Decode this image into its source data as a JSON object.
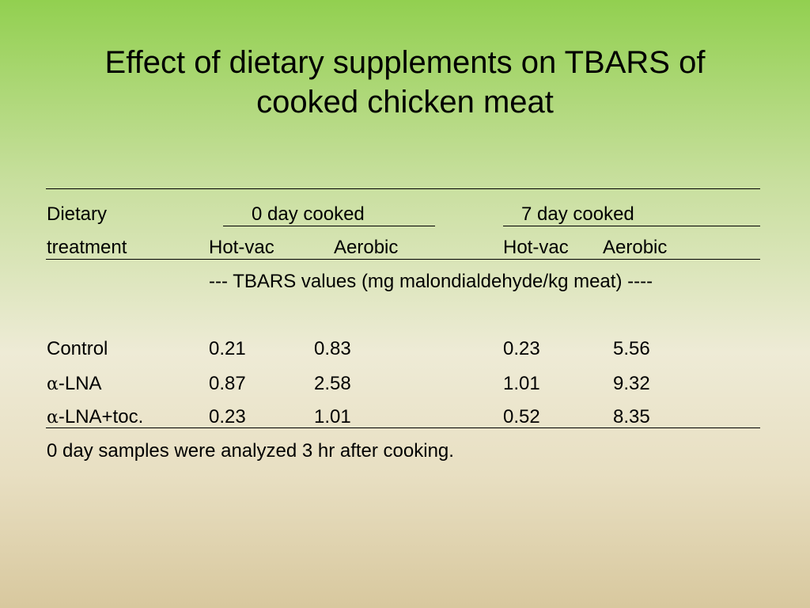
{
  "slide": {
    "title_line1": "Effect of dietary supplements on TBARS of",
    "title_line2": "cooked chicken meat"
  },
  "table": {
    "header": {
      "dietary": "Dietary",
      "treatment": "treatment",
      "day0_group": "0 day cooked",
      "day7_group": "7 day cooked",
      "col_hotvac_0": "Hot-vac",
      "col_aerobic_0": "Aerobic",
      "col_hotvac_7": "Hot-vac",
      "col_aerobic_7": "Aerobic"
    },
    "units_note": "--- TBARS values (mg malondialdehyde/kg meat) ----",
    "rows": [
      {
        "symbol": "",
        "label": "Control",
        "d0_hotvac": "0.21",
        "d0_aerobic": "0.83",
        "d7_hotvac": "0.23",
        "d7_aerobic": "5.56"
      },
      {
        "symbol": "α",
        "label": "-LNA",
        "d0_hotvac": "0.87",
        "d0_aerobic": "2.58",
        "d7_hotvac": "1.01",
        "d7_aerobic": "9.32"
      },
      {
        "symbol": "α",
        "label": "-LNA+toc.",
        "d0_hotvac": "0.23",
        "d0_aerobic": "1.01",
        "d7_hotvac": "0.52",
        "d7_aerobic": "8.35"
      }
    ],
    "footnote": "0 day samples were analyzed 3 hr after cooking."
  }
}
